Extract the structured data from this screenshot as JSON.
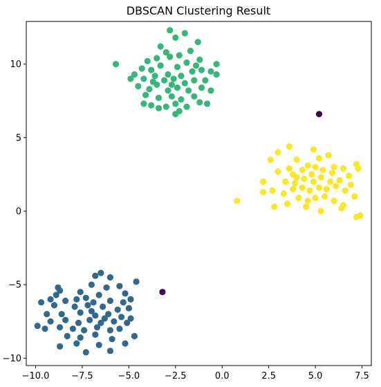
{
  "chart_data": {
    "type": "scatter",
    "title": "DBSCAN Clustering Result",
    "xlabel": "",
    "ylabel": "",
    "xlim": [
      -10.5,
      8.0
    ],
    "ylim": [
      -10.5,
      12.9
    ],
    "xticks": [
      -10.0,
      -7.5,
      -5.0,
      -2.5,
      0.0,
      2.5,
      5.0,
      7.5
    ],
    "xtick_labels": [
      "−10.0",
      "−7.5",
      "−5.0",
      "−2.5",
      "0.0",
      "2.5",
      "5.0",
      "7.5"
    ],
    "yticks": [
      -10,
      -5,
      0,
      5,
      10
    ],
    "ytick_labels": [
      "−10",
      "−5",
      "0",
      "5",
      "10"
    ],
    "grid": false,
    "legend": "none",
    "series": [
      {
        "color": "#440154",
        "points": [
          [
            5.2,
            6.6
          ],
          [
            -3.2,
            -5.5
          ]
        ]
      },
      {
        "color": "#35b779",
        "points": [
          [
            -5.7,
            10.0
          ],
          [
            -2.8,
            12.3
          ],
          [
            -2.0,
            12.1
          ],
          [
            -1.3,
            11.5
          ],
          [
            -2.5,
            11.8
          ],
          [
            -3.3,
            11.2
          ],
          [
            -3.0,
            10.8
          ],
          [
            -1.7,
            10.9
          ],
          [
            -1.2,
            10.3
          ],
          [
            -0.3,
            10.0
          ],
          [
            -3.5,
            10.4
          ],
          [
            -4.0,
            10.2
          ],
          [
            -2.8,
            10.5
          ],
          [
            -2.3,
            10.6
          ],
          [
            -1.9,
            10.1
          ],
          [
            -1.1,
            9.6
          ],
          [
            -0.6,
            9.5
          ],
          [
            -3.8,
            9.6
          ],
          [
            -4.3,
            9.7
          ],
          [
            -3.3,
            9.9
          ],
          [
            -2.9,
            9.3
          ],
          [
            -2.4,
            9.8
          ],
          [
            -1.6,
            9.5
          ],
          [
            -0.3,
            9.3
          ],
          [
            -4.7,
            9.3
          ],
          [
            -4.9,
            9.0
          ],
          [
            -4.2,
            9.0
          ],
          [
            -3.7,
            8.8
          ],
          [
            -3.1,
            8.9
          ],
          [
            -2.6,
            9.0
          ],
          [
            -2.0,
            8.7
          ],
          [
            -1.5,
            8.9
          ],
          [
            -0.9,
            8.9
          ],
          [
            -4.5,
            8.5
          ],
          [
            -3.9,
            8.3
          ],
          [
            -3.5,
            8.6
          ],
          [
            -2.9,
            8.2
          ],
          [
            -2.4,
            8.4
          ],
          [
            -1.8,
            8.2
          ],
          [
            -1.1,
            8.4
          ],
          [
            -0.6,
            8.2
          ],
          [
            -4.1,
            7.9
          ],
          [
            -3.4,
            7.7
          ],
          [
            -2.7,
            7.8
          ],
          [
            -2.2,
            7.6
          ],
          [
            -1.5,
            7.8
          ],
          [
            -4.2,
            7.3
          ],
          [
            -3.8,
            7.2
          ],
          [
            -3.0,
            7.1
          ],
          [
            -2.5,
            7.3
          ],
          [
            -1.9,
            7.1
          ],
          [
            -1.2,
            7.4
          ],
          [
            -3.4,
            7.0
          ],
          [
            -2.3,
            6.8
          ],
          [
            -2.5,
            6.6
          ],
          [
            -0.8,
            7.3
          ],
          [
            -3.6,
            9.2
          ],
          [
            -2.2,
            9.2
          ],
          [
            -1.4,
            9.9
          ],
          [
            -2.7,
            8.6
          ]
        ]
      },
      {
        "color": "#31688e",
        "points": [
          [
            -6.5,
            -4.2
          ],
          [
            -6.8,
            -4.4
          ],
          [
            -6.0,
            -4.5
          ],
          [
            -4.6,
            -4.8
          ],
          [
            -5.5,
            -5.1
          ],
          [
            -7.0,
            -5.0
          ],
          [
            -6.2,
            -5.2
          ],
          [
            -8.8,
            -5.2
          ],
          [
            -8.7,
            -5.4
          ],
          [
            -7.6,
            -5.5
          ],
          [
            -5.2,
            -5.6
          ],
          [
            -6.6,
            -5.7
          ],
          [
            -7.3,
            -5.9
          ],
          [
            -8.9,
            -5.7
          ],
          [
            -9.2,
            -6.0
          ],
          [
            -8.4,
            -6.1
          ],
          [
            -7.8,
            -6.0
          ],
          [
            -6.9,
            -6.2
          ],
          [
            -6.0,
            -6.1
          ],
          [
            -5.3,
            -6.2
          ],
          [
            -4.9,
            -6.0
          ],
          [
            -9.7,
            -6.2
          ],
          [
            -9.0,
            -6.4
          ],
          [
            -7.9,
            -6.5
          ],
          [
            -7.2,
            -6.4
          ],
          [
            -6.4,
            -6.5
          ],
          [
            -5.6,
            -6.7
          ],
          [
            -5.0,
            -6.6
          ],
          [
            -9.4,
            -7.0
          ],
          [
            -8.6,
            -7.0
          ],
          [
            -7.6,
            -6.9
          ],
          [
            -6.8,
            -7.1
          ],
          [
            -6.1,
            -7.0
          ],
          [
            -5.4,
            -7.2
          ],
          [
            -4.9,
            -7.3
          ],
          [
            -9.2,
            -7.5
          ],
          [
            -8.4,
            -7.4
          ],
          [
            -7.7,
            -7.6
          ],
          [
            -7.1,
            -7.4
          ],
          [
            -6.5,
            -7.6
          ],
          [
            -5.8,
            -7.5
          ],
          [
            -5.1,
            -7.6
          ],
          [
            -9.9,
            -7.8
          ],
          [
            -9.5,
            -8.0
          ],
          [
            -8.7,
            -7.9
          ],
          [
            -8.0,
            -8.0
          ],
          [
            -7.4,
            -8.1
          ],
          [
            -6.7,
            -7.9
          ],
          [
            -6.0,
            -8.1
          ],
          [
            -5.5,
            -8.0
          ],
          [
            -8.3,
            -8.5
          ],
          [
            -7.6,
            -8.6
          ],
          [
            -6.8,
            -8.4
          ],
          [
            -5.9,
            -8.7
          ],
          [
            -4.7,
            -8.5
          ],
          [
            -8.7,
            -9.2
          ],
          [
            -7.8,
            -9.0
          ],
          [
            -6.6,
            -9.1
          ],
          [
            -7.3,
            -9.6
          ],
          [
            -6.0,
            -9.5
          ],
          [
            -5.2,
            -9.0
          ],
          [
            -7.0,
            -6.8
          ],
          [
            -6.3,
            -7.3
          ]
        ]
      },
      {
        "color": "#fde725",
        "points": [
          [
            0.8,
            0.7
          ],
          [
            2.2,
            1.3
          ],
          [
            2.2,
            2.0
          ],
          [
            2.6,
            3.5
          ],
          [
            3.0,
            4.0
          ],
          [
            3.6,
            4.4
          ],
          [
            4.0,
            3.5
          ],
          [
            4.9,
            4.2
          ],
          [
            5.2,
            3.6
          ],
          [
            5.7,
            3.8
          ],
          [
            3.0,
            2.7
          ],
          [
            3.8,
            2.5
          ],
          [
            4.3,
            2.8
          ],
          [
            4.6,
            3.1
          ],
          [
            5.0,
            3.0
          ],
          [
            5.4,
            2.8
          ],
          [
            6.0,
            3.0
          ],
          [
            6.5,
            2.9
          ],
          [
            7.2,
            3.2
          ],
          [
            7.3,
            2.9
          ],
          [
            3.4,
            2.0
          ],
          [
            3.9,
            1.9
          ],
          [
            4.4,
            2.2
          ],
          [
            4.9,
            2.0
          ],
          [
            5.3,
            2.3
          ],
          [
            5.8,
            2.0
          ],
          [
            6.3,
            2.1
          ],
          [
            6.8,
            2.4
          ],
          [
            2.7,
            1.4
          ],
          [
            3.3,
            1.2
          ],
          [
            3.8,
            1.5
          ],
          [
            4.3,
            1.6
          ],
          [
            4.7,
            1.4
          ],
          [
            5.2,
            1.6
          ],
          [
            5.6,
            1.5
          ],
          [
            6.1,
            1.7
          ],
          [
            6.6,
            1.4
          ],
          [
            7.1,
            1.0
          ],
          [
            4.1,
            0.9
          ],
          [
            4.6,
            0.7
          ],
          [
            5.0,
            0.9
          ],
          [
            5.5,
            1.0
          ],
          [
            6.0,
            0.7
          ],
          [
            6.5,
            0.4
          ],
          [
            2.8,
            0.3
          ],
          [
            3.5,
            0.5
          ],
          [
            4.5,
            0.3
          ],
          [
            5.3,
            0.0
          ],
          [
            6.4,
            0.2
          ],
          [
            7.2,
            -0.4
          ],
          [
            7.4,
            -0.3
          ],
          [
            5.9,
            2.6
          ],
          [
            4.8,
            2.5
          ],
          [
            3.6,
            2.9
          ],
          [
            6.9,
            1.8
          ],
          [
            4.0,
            2.3
          ]
        ]
      }
    ]
  }
}
